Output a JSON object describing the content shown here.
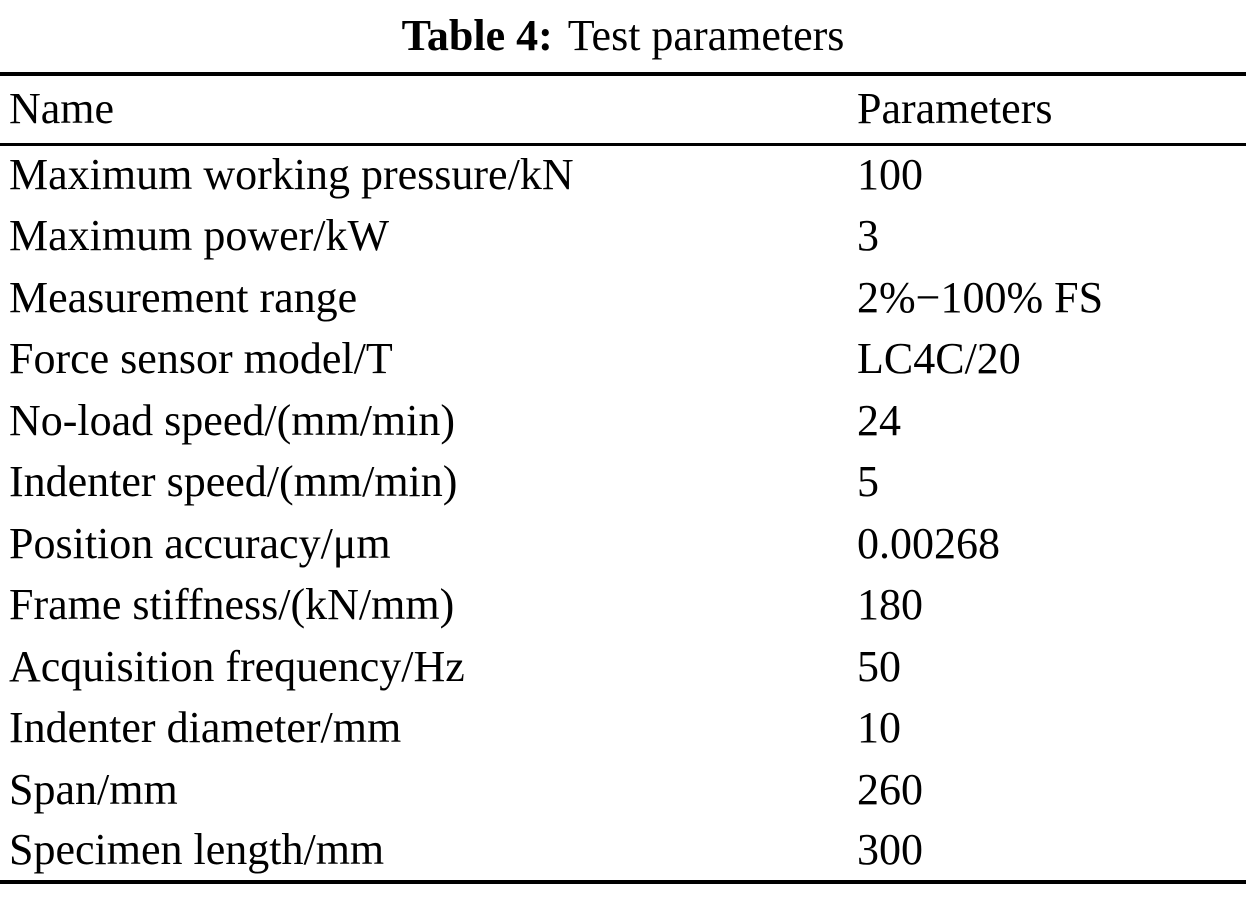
{
  "document": {
    "caption": {
      "label": "Table 4:",
      "title": "Test parameters"
    },
    "table": {
      "columns": [
        "Name",
        "Parameters"
      ],
      "rows": [
        {
          "name": "Maximum working pressure/kN",
          "value": "100"
        },
        {
          "name": "Maximum power/kW",
          "value": "3"
        },
        {
          "name": "Measurement range",
          "value": "2%−100% FS"
        },
        {
          "name": "Force sensor model/T",
          "value": "LC4C/20"
        },
        {
          "name": "No-load speed/(mm/min)",
          "value": "24"
        },
        {
          "name": "Indenter speed/(mm/min)",
          "value": "5"
        },
        {
          "name": "Position accuracy/μm",
          "value": "0.00268"
        },
        {
          "name": "Frame stiffness/(kN/mm)",
          "value": "180"
        },
        {
          "name": "Acquisition frequency/Hz",
          "value": "50"
        },
        {
          "name": "Indenter diameter/mm",
          "value": "10"
        },
        {
          "name": "Span/mm",
          "value": "260"
        },
        {
          "name": "Specimen length/mm",
          "value": "300"
        }
      ]
    }
  }
}
